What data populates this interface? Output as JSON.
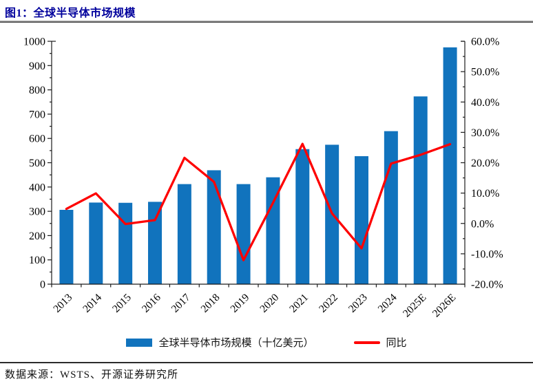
{
  "page": {
    "title": "图1：全球半导体市场规模",
    "source_note": "数据来源：WSTS、开源证券研究所"
  },
  "colors": {
    "bar": "#1173BD",
    "line": "#FE0000",
    "title_text": "#00009C",
    "axis": "#1a1a1a",
    "label_text": "#000000"
  },
  "chart_data": {
    "type": "bar",
    "combo": "bar+line",
    "title": "全球半导体市场规模",
    "categories": [
      "2013",
      "2014",
      "2015",
      "2016",
      "2017",
      "2018",
      "2019",
      "2020",
      "2021",
      "2022",
      "2023",
      "2024",
      "2025E",
      "2026E"
    ],
    "series": [
      {
        "name": "全球半导体市场规模（十亿美元）",
        "type": "bar",
        "axis": "left",
        "values": [
          306,
          336,
          335,
          339,
          412,
          469,
          412,
          440,
          556,
          574,
          527,
          630,
          773,
          975
        ]
      },
      {
        "name": "同比",
        "type": "line",
        "axis": "right",
        "values": [
          4.8,
          9.9,
          -0.2,
          1.1,
          21.6,
          13.7,
          -12.1,
          6.8,
          26.2,
          3.3,
          -8.2,
          19.7,
          22.6,
          26.1
        ]
      }
    ],
    "left_axis": {
      "min": 0,
      "max": 1000,
      "step": 100,
      "labels": [
        "0",
        "100",
        "200",
        "300",
        "400",
        "500",
        "600",
        "700",
        "800",
        "900",
        "1000"
      ]
    },
    "right_axis": {
      "min": -20,
      "max": 60,
      "step": 10,
      "labels": [
        "-20.0%",
        "-10.0%",
        "0.0%",
        "10.0%",
        "20.0%",
        "30.0%",
        "40.0%",
        "50.0%",
        "60.0%"
      ]
    },
    "legend_position": "bottom",
    "grid": false
  }
}
